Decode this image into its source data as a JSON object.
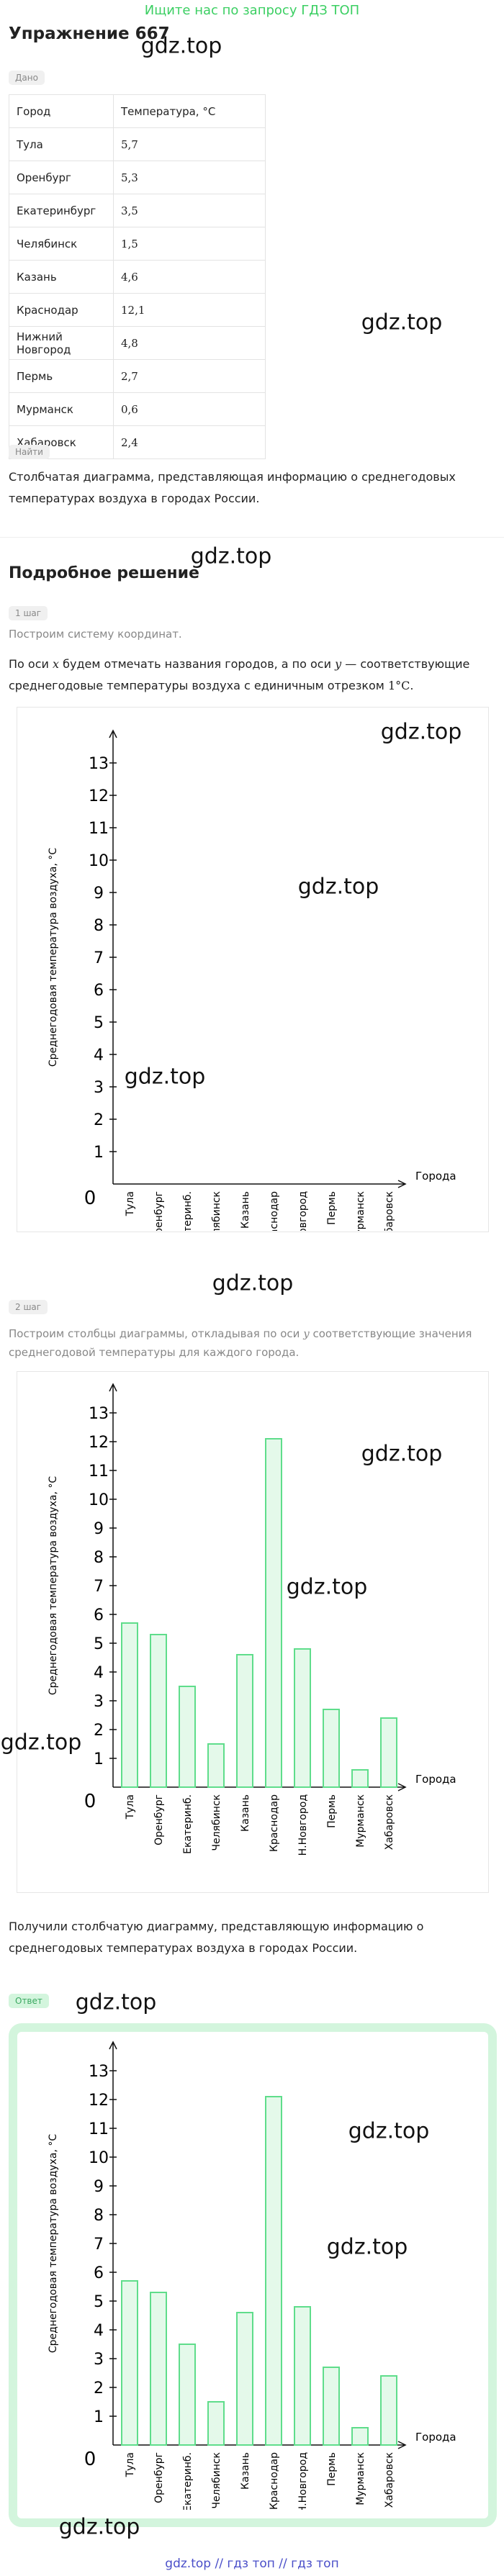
{
  "banner": "Ищите нас по запросу ГДЗ ТОП",
  "title": "Упражнение 667",
  "watermarks": [
    "gdz.top",
    "gdz.top",
    "gdz.top",
    "gdz.top",
    "gdz.top",
    "gdz.top",
    "gdz.top",
    "gdz.top",
    "gdz.top",
    "gdz.top",
    "gdz.top",
    "gdz.top",
    "gdz.top",
    "gdz.top"
  ],
  "given_label": "Дано",
  "table": {
    "headers": [
      "Город",
      "Температура, °C"
    ],
    "rows": [
      [
        "Тула",
        "5,7"
      ],
      [
        "Оренбург",
        "5,3"
      ],
      [
        "Екатеринбург",
        "3,5"
      ],
      [
        "Челябинск",
        "1,5"
      ],
      [
        "Казань",
        "4,6"
      ],
      [
        "Краснодар",
        "12,1"
      ],
      [
        "Нижний Новгород",
        "4,8"
      ],
      [
        "Пермь",
        "2,7"
      ],
      [
        "Мурманск",
        "0,6"
      ],
      [
        "Хабаровск",
        "2,4"
      ]
    ]
  },
  "find_label": "Найти",
  "find_text": "Столбчатая диаграмма, представляющая информацию о среднегодовых температурах воздуха в городах России.",
  "solution_title": "Подробное решение",
  "step1": {
    "label": "1 шаг",
    "intro": "Построим систему координат.",
    "text": [
      "По оси ",
      "x",
      " будем отмечать названия городов, а по оси ",
      "y",
      " — соответствующие среднегодовые температуры воздуха с единичным отрезком ",
      "1°C",
      "."
    ]
  },
  "step2": {
    "label": "2 шаг",
    "text": [
      "Построим столбцы диаграммы, откладывая по оси ",
      "y",
      " соответствующие значения среднегодовой температуры для каждого города."
    ]
  },
  "conclusion": "Получили столбчатую диаграмму, представляющую информацию о среднегодовых температурах воздуха в городах России.",
  "answer_label": "Ответ",
  "footer": "gdz.top // гдз топ // гдз топ",
  "chart_data": [
    {
      "type": "bar",
      "ylabel": "Среднегодовая температура воздуха, °C",
      "xlabel": "Города",
      "categories": [
        "Тула",
        "Оренбург",
        "Екатеринб.",
        "Челябинск",
        "Казань",
        "Краснодар",
        "Н.Новгород",
        "Пермь",
        "Мурманск",
        "Хабаровск"
      ],
      "ylim": [
        0,
        14
      ],
      "yticks": [
        0,
        1,
        2,
        3,
        4,
        5,
        6,
        7,
        8,
        9,
        10,
        11,
        12,
        13
      ]
    },
    {
      "type": "bar",
      "ylabel": "Среднегодовая температура воздуха, °C",
      "xlabel": "Города",
      "categories": [
        "Тула",
        "Оренбург",
        "Екатеринб.",
        "Челябинск",
        "Казань",
        "Краснодар",
        "Н.Новгород",
        "Пермь",
        "Мурманск",
        "Хабаровск"
      ],
      "values": [
        5.7,
        5.3,
        3.5,
        1.5,
        4.6,
        12.1,
        4.8,
        2.7,
        0.6,
        2.4
      ],
      "color": "#5fdd8b",
      "ylim": [
        0,
        14
      ],
      "yticks": [
        0,
        1,
        2,
        3,
        4,
        5,
        6,
        7,
        8,
        9,
        10,
        11,
        12,
        13
      ]
    },
    {
      "type": "bar",
      "ylabel": "Среднегодовая температура воздуха, °C",
      "xlabel": "Города",
      "categories": [
        "Тула",
        "Оренбург",
        "Екатеринб.",
        "Челябинск",
        "Казань",
        "Краснодар",
        "Н.Новгород",
        "Пермь",
        "Мурманск",
        "Хабаровск"
      ],
      "values": [
        5.7,
        5.3,
        3.5,
        1.5,
        4.6,
        12.1,
        4.8,
        2.7,
        0.6,
        2.4
      ],
      "color": "#5fdd8b",
      "ylim": [
        0,
        14
      ],
      "yticks": [
        0,
        1,
        2,
        3,
        4,
        5,
        6,
        7,
        8,
        9,
        10,
        11,
        12,
        13
      ]
    }
  ]
}
